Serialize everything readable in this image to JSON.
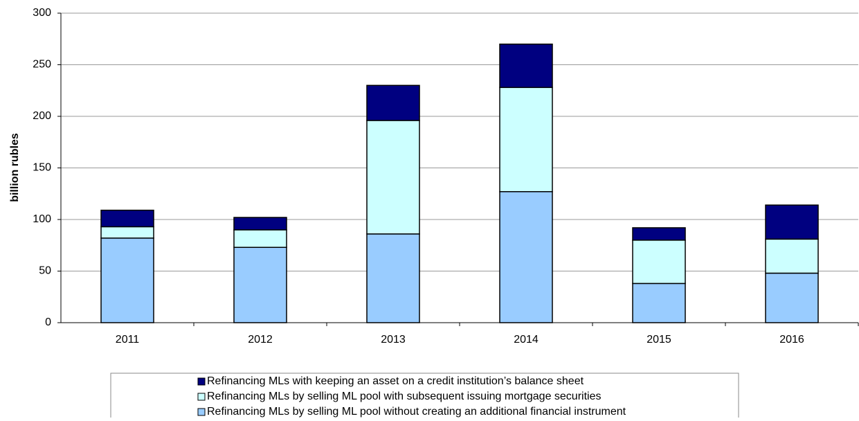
{
  "chart_data": {
    "type": "stacked-bar",
    "y_label": "billion rubles",
    "categories": [
      "2011",
      "2012",
      "2013",
      "2014",
      "2015",
      "2016"
    ],
    "series": [
      {
        "name": "Refinancing MLs by selling ML pool without creating an additional financial instrument",
        "color": "#99ccff",
        "values": [
          82,
          73,
          86,
          127,
          38,
          48
        ]
      },
      {
        "name": "Refinancing MLs by selling ML pool with subsequent issuing mortgage securities",
        "color": "#ccffff",
        "values": [
          11,
          17,
          110,
          101,
          42,
          33
        ]
      },
      {
        "name": "Refinancing MLs with keeping an asset on a credit institution’s balance sheet",
        "color": "#000080",
        "values": [
          16,
          12,
          34,
          42,
          12,
          33
        ]
      }
    ],
    "ylim": [
      0,
      300
    ],
    "yticks": [
      0,
      50,
      100,
      150,
      200,
      250,
      300
    ],
    "grid": true
  }
}
